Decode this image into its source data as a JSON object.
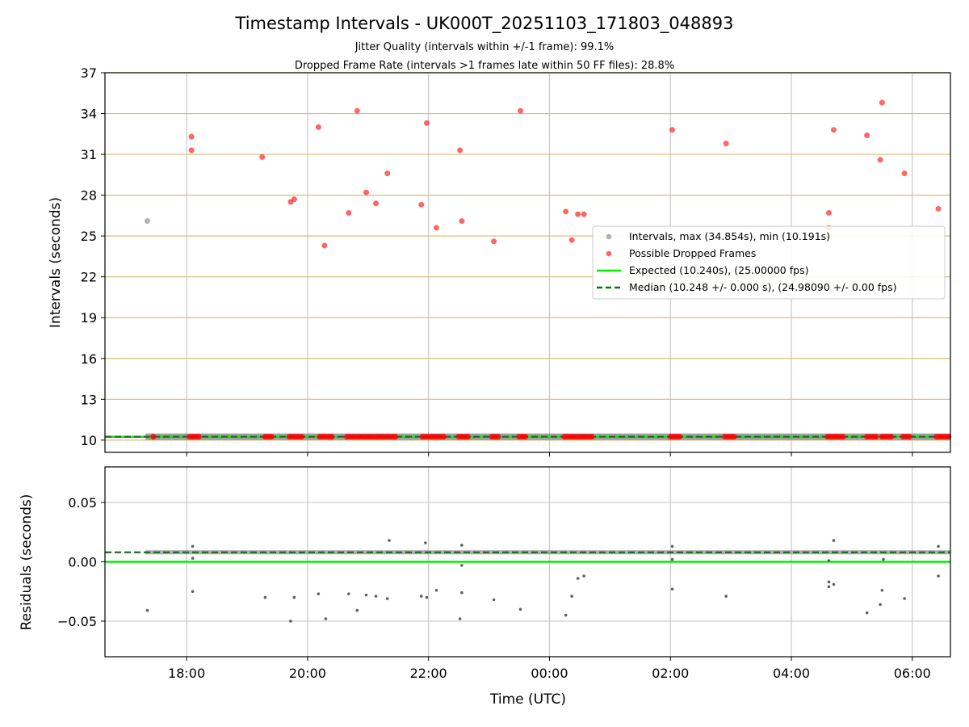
{
  "chart_data": [
    {
      "type": "scatter",
      "title": "Timestamp Intervals - UK000T_20251103_171803_048893",
      "subtitle_lines": [
        "Jitter Quality (intervals within +/-1 frame): 99.1%",
        "Dropped Frame Rate (intervals >1 frames late within 50 FF files): 28.8%"
      ],
      "ylabel": "Intervals (seconds)",
      "xlim_hours": [
        16.65,
        30.63
      ],
      "ylim": [
        9.1,
        37
      ],
      "yticks": [
        10,
        13,
        16,
        19,
        22,
        25,
        28,
        31,
        34,
        37
      ],
      "grid": true,
      "legend_position": "center-right",
      "legend": {
        "intervals": "Intervals, max (34.854s), min (10.191s)",
        "dropped": "Possible Dropped Frames",
        "expected": "Expected (10.240s), (25.00000 fps)",
        "median": "Median (10.248 +/- 0.000 s), (24.98090 +/- 0.00 fps)"
      },
      "expected": 10.24,
      "median": 10.248,
      "series": [
        {
          "name": "Intervals, max (34.854s), min (10.191s)",
          "color": "#808080",
          "points": [
            [
              17.35,
              26.1
            ]
          ],
          "baseline": {
            "value": 10.248,
            "x_range": [
              17.32,
              30.63
            ]
          }
        },
        {
          "name": "Possible Dropped Frames",
          "color": "#ff0000",
          "points": [
            [
              18.08,
              32.3
            ],
            [
              18.08,
              31.3
            ],
            [
              19.25,
              30.8
            ],
            [
              19.72,
              27.5
            ],
            [
              19.78,
              27.7
            ],
            [
              20.18,
              33.0
            ],
            [
              20.28,
              24.3
            ],
            [
              20.68,
              26.7
            ],
            [
              20.82,
              34.2
            ],
            [
              20.97,
              28.2
            ],
            [
              21.13,
              27.4
            ],
            [
              21.32,
              29.6
            ],
            [
              21.88,
              27.3
            ],
            [
              21.97,
              33.3
            ],
            [
              22.13,
              25.6
            ],
            [
              22.52,
              31.3
            ],
            [
              22.55,
              26.1
            ],
            [
              23.08,
              24.6
            ],
            [
              23.52,
              34.2
            ],
            [
              24.27,
              26.8
            ],
            [
              24.37,
              24.7
            ],
            [
              24.47,
              26.6
            ],
            [
              24.57,
              26.6
            ],
            [
              26.03,
              32.8
            ],
            [
              26.92,
              31.8
            ],
            [
              28.62,
              26.7
            ],
            [
              28.62,
              25.6
            ],
            [
              28.7,
              32.8
            ],
            [
              29.25,
              32.4
            ],
            [
              29.47,
              30.6
            ],
            [
              29.5,
              34.8
            ],
            [
              29.87,
              29.6
            ],
            [
              30.43,
              27.0
            ]
          ],
          "baseline_x": [
            17.45,
            18.05,
            18.1,
            18.15,
            18.2,
            19.3,
            19.35,
            19.4,
            19.7,
            19.75,
            19.8,
            19.85,
            19.9,
            20.2,
            20.25,
            20.3,
            20.35,
            20.4,
            20.65,
            20.7,
            20.75,
            20.8,
            20.85,
            20.9,
            20.95,
            21.0,
            21.05,
            21.1,
            21.15,
            21.2,
            21.25,
            21.3,
            21.35,
            21.4,
            21.45,
            21.9,
            21.95,
            22.0,
            22.05,
            22.1,
            22.15,
            22.2,
            22.25,
            22.5,
            22.55,
            22.6,
            22.65,
            23.05,
            23.1,
            23.15,
            23.5,
            23.55,
            23.6,
            24.25,
            24.3,
            24.35,
            24.4,
            24.45,
            24.5,
            24.55,
            24.6,
            24.65,
            24.7,
            26.0,
            26.05,
            26.1,
            26.15,
            26.9,
            26.95,
            27.0,
            27.05,
            28.6,
            28.65,
            28.7,
            28.75,
            28.8,
            28.85,
            29.25,
            29.3,
            29.35,
            29.4,
            29.5,
            29.55,
            29.6,
            29.65,
            29.85,
            29.9,
            29.95,
            30.4,
            30.45,
            30.5,
            30.55,
            30.6
          ]
        }
      ]
    },
    {
      "type": "scatter",
      "ylabel": "Residuals (seconds)",
      "xlabel": "Time (UTC)",
      "xlim_hours": [
        16.65,
        30.63
      ],
      "ylim": [
        -0.08,
        0.08
      ],
      "yticks": [
        -0.05,
        0.0,
        0.05
      ],
      "ytick_labels": [
        "−0.05",
        "0.00",
        "0.05"
      ],
      "xticks": [
        18,
        20,
        22,
        24,
        26,
        28,
        30
      ],
      "xtick_labels": [
        "18:00",
        "20:00",
        "22:00",
        "00:00",
        "02:00",
        "04:00",
        "06:00"
      ],
      "grid": true,
      "expected_residual": 0.0,
      "median_residual": 0.008,
      "series": [
        {
          "name": "Residuals",
          "color": "#606060",
          "points": [
            [
              17.35,
              -0.041
            ],
            [
              18.1,
              -0.025
            ],
            [
              18.1,
              0.003
            ],
            [
              18.1,
              0.013
            ],
            [
              19.3,
              -0.03
            ],
            [
              19.72,
              -0.05
            ],
            [
              19.78,
              -0.03
            ],
            [
              20.18,
              -0.027
            ],
            [
              20.3,
              -0.048
            ],
            [
              20.68,
              -0.027
            ],
            [
              20.82,
              -0.041
            ],
            [
              20.97,
              -0.028
            ],
            [
              21.13,
              -0.029
            ],
            [
              21.32,
              -0.031
            ],
            [
              21.35,
              0.018
            ],
            [
              21.88,
              -0.029
            ],
            [
              21.95,
              0.016
            ],
            [
              21.97,
              -0.03
            ],
            [
              22.13,
              -0.024
            ],
            [
              22.52,
              -0.048
            ],
            [
              22.55,
              -0.026
            ],
            [
              22.55,
              -0.003
            ],
            [
              22.55,
              0.014
            ],
            [
              23.08,
              -0.032
            ],
            [
              23.52,
              -0.04
            ],
            [
              24.27,
              -0.045
            ],
            [
              24.37,
              -0.029
            ],
            [
              24.47,
              -0.014
            ],
            [
              24.57,
              -0.012
            ],
            [
              26.03,
              -0.023
            ],
            [
              26.03,
              0.002
            ],
            [
              26.03,
              0.013
            ],
            [
              26.92,
              -0.029
            ],
            [
              28.62,
              -0.017
            ],
            [
              28.62,
              -0.021
            ],
            [
              28.62,
              0.001
            ],
            [
              28.7,
              -0.019
            ],
            [
              28.7,
              0.018
            ],
            [
              29.25,
              -0.043
            ],
            [
              29.47,
              -0.036
            ],
            [
              29.5,
              -0.024
            ],
            [
              29.87,
              -0.031
            ],
            [
              30.43,
              -0.012
            ],
            [
              30.43,
              0.013
            ],
            [
              29.52,
              0.002
            ]
          ]
        }
      ]
    }
  ]
}
